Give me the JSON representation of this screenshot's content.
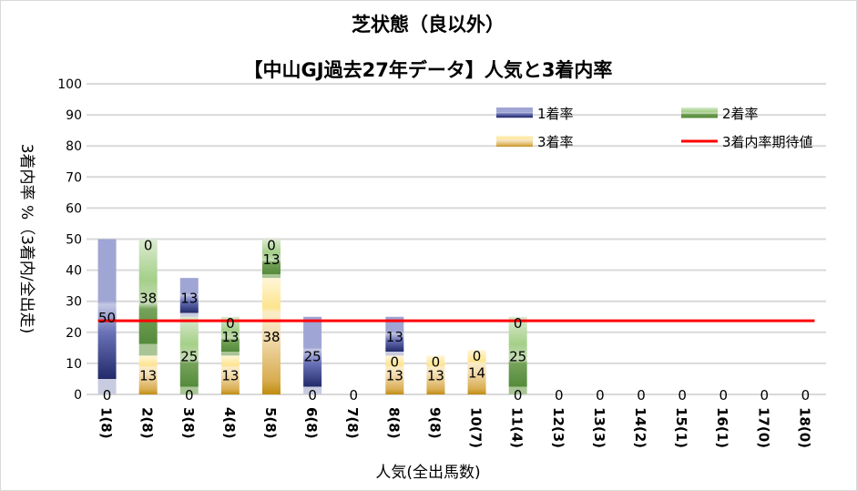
{
  "chart_data": {
    "type": "bar",
    "stacked": true,
    "title": "芝状態（良以外）",
    "subtitle": "【中山GJ過去27年データ】人気と3着内率",
    "xlabel": "人気(全出馬数)",
    "ylabel": "3着内率 %（3着内/全出走)",
    "ylim": [
      0,
      100
    ],
    "yticks": [
      0,
      10,
      20,
      30,
      40,
      50,
      60,
      70,
      80,
      90,
      100
    ],
    "grid": true,
    "legend_position": "top-right",
    "categories": [
      "1(8)",
      "2(8)",
      "3(8)",
      "4(8)",
      "5(8)",
      "6(8)",
      "7(8)",
      "8(8)",
      "9(8)",
      "10(7)",
      "11(4)",
      "12(3)",
      "13(3)",
      "14(2)",
      "15(1)",
      "16(1)",
      "17(0)",
      "18(0)"
    ],
    "series": [
      {
        "name": "3着率",
        "color": "#e0b030",
        "values": [
          0,
          12.5,
          0,
          12.5,
          37.5,
          0,
          0,
          12.5,
          12.5,
          14.3,
          0,
          0,
          0,
          0,
          0,
          0,
          0,
          0
        ],
        "labels": [
          "0",
          "13",
          "0",
          "13",
          "38",
          "0",
          "0",
          "13",
          "13",
          "14",
          "0",
          "0",
          "0",
          "0",
          "0",
          "0",
          "0",
          "0"
        ]
      },
      {
        "name": "2着率",
        "color": "#70ad47",
        "values": [
          0,
          37.5,
          25,
          12.5,
          12.5,
          0,
          0,
          0,
          0,
          0,
          25,
          0,
          0,
          0,
          0,
          0,
          0,
          0
        ],
        "labels": [
          "",
          "38",
          "25",
          "13",
          "13",
          "",
          "",
          "0",
          "",
          "",
          "25",
          "",
          "",
          "",
          "",
          "",
          "",
          ""
        ]
      },
      {
        "name": "1着率",
        "color": "#4a56a8",
        "values": [
          50,
          0,
          12.5,
          0,
          0,
          25,
          0,
          12.5,
          0,
          0,
          0,
          0,
          0,
          0,
          0,
          0,
          0,
          0
        ],
        "labels": [
          "50",
          "0",
          "13",
          "0",
          "0",
          "25",
          "",
          "13",
          "0",
          "0",
          "0",
          "",
          "",
          "",
          "",
          "",
          "",
          ""
        ]
      }
    ],
    "reference_line": {
      "name": "3着内率期待値",
      "value": 23.7,
      "color": "#ff0000"
    },
    "legend": [
      "1着率",
      "2着率",
      "3着率",
      "3着内率期待値"
    ]
  }
}
